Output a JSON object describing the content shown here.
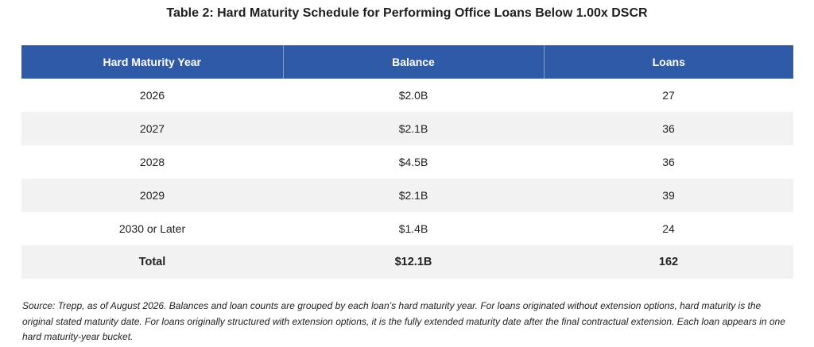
{
  "title": "Table 2: Hard Maturity Schedule for Performing Office Loans Below 1.00x DSCR",
  "table": {
    "headers": [
      "Hard Maturity Year",
      "Balance",
      "Loans"
    ],
    "rows": [
      {
        "year": "2026",
        "balance": "$2.0B",
        "loans": "27"
      },
      {
        "year": "2027",
        "balance": "$2.1B",
        "loans": "36"
      },
      {
        "year": "2028",
        "balance": "$4.5B",
        "loans": "36"
      },
      {
        "year": "2029",
        "balance": "$2.1B",
        "loans": "39"
      },
      {
        "year": "2030 or Later",
        "balance": "$1.4B",
        "loans": "24"
      }
    ],
    "total": {
      "label": "Total",
      "balance": "$12.1B",
      "loans": "162"
    }
  },
  "colors": {
    "header_bg": "#2e5aa8",
    "stripe_bg": "#f2f2f2"
  },
  "source": "Source: Trepp, as of August 2026. Balances and loan counts are grouped by each loan’s hard maturity year. For loans originated without extension options, hard maturity is the original stated maturity date. For loans originally structured with extension options, it is the fully extended maturity date after the final contractual extension. Each loan appears in one hard maturity-year bucket."
}
